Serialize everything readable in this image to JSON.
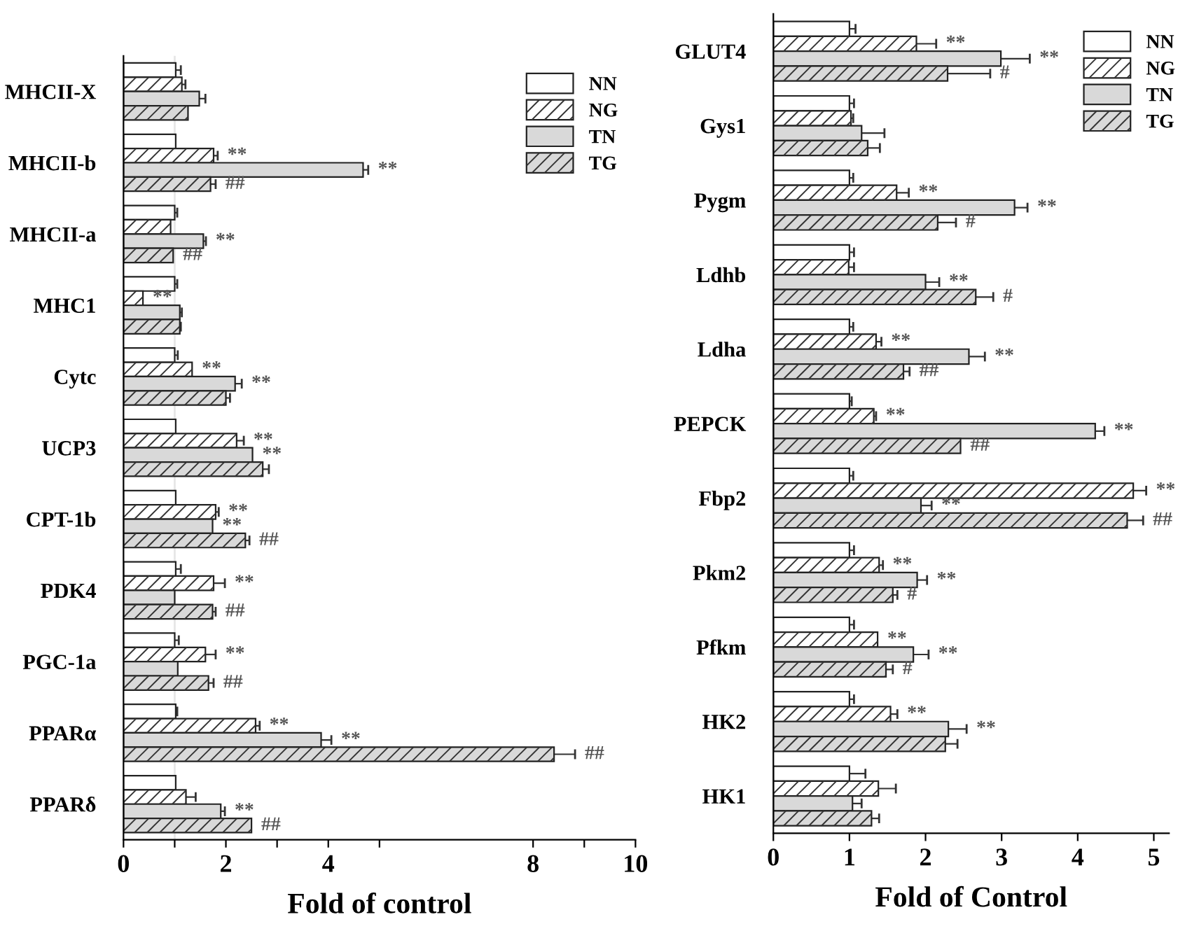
{
  "chart_data": [
    {
      "type": "bar",
      "orientation": "horizontal",
      "xlabel": "Fold of control",
      "legend": "top right",
      "categories": [
        "MHCII-X",
        "MHCII-b",
        "MHCII-a",
        "MHC1",
        "Cytc",
        "UCP3",
        "CPT-1b",
        "PDK4",
        "PGC-1a",
        "PPARα",
        "PPARδ"
      ],
      "xlim": [
        0,
        10
      ],
      "xticks": [
        0,
        {
          "value": 1,
          "label": null
        },
        2,
        {
          "value": 3,
          "label": null
        },
        4,
        {
          "value": 5,
          "label": null
        },
        8,
        {
          "value": 9,
          "label": null
        },
        10
      ],
      "ref_lines": [
        {
          "axis": "x",
          "value": 1,
          "label": null,
          "color": "#e6e6e6"
        }
      ],
      "series": [
        {
          "name": "NN",
          "color": "#ffffff",
          "values": [
            1.02,
            1.02,
            1.0,
            1.0,
            1.0,
            1.02,
            1.02,
            1.02,
            1.0,
            1.02,
            1.02
          ],
          "errors": [
            0.1,
            null,
            0.05,
            0.05,
            0.06,
            null,
            null,
            0.1,
            0.08,
            0.03,
            null
          ],
          "value_labels": [
            null,
            null,
            null,
            null,
            null,
            null,
            null,
            null,
            null,
            null,
            null
          ]
        },
        {
          "name": "NG",
          "color": "#ffffff",
          "values": [
            1.14,
            1.76,
            0.92,
            0.38,
            1.34,
            2.21,
            1.8,
            1.76,
            1.6,
            2.58,
            1.22
          ],
          "errors": [
            0.07,
            0.08,
            null,
            null,
            null,
            0.14,
            0.06,
            0.22,
            0.2,
            0.08,
            0.19
          ],
          "value_labels": [
            null,
            "**",
            null,
            "**",
            "**",
            "**",
            "**",
            "**",
            "**",
            "**",
            null
          ]
        },
        {
          "name": "TN",
          "color": "#d9d9d9",
          "values": [
            1.48,
            4.68,
            1.56,
            1.1,
            2.18,
            2.52,
            1.74,
            1.0,
            1.06,
            3.86,
            1.9
          ],
          "errors": [
            0.12,
            0.1,
            0.05,
            0.04,
            0.13,
            null,
            null,
            null,
            null,
            0.2,
            0.08
          ],
          "value_labels": [
            null,
            "**",
            "**",
            null,
            "**",
            "**",
            "**",
            null,
            null,
            "**",
            "**"
          ]
        },
        {
          "name": "TG",
          "color": "#d9d9d9",
          "values": [
            1.26,
            1.7,
            0.97,
            1.1,
            2.0,
            2.72,
            2.38,
            1.74,
            1.66,
            8.41,
            2.5
          ],
          "errors": [
            null,
            0.1,
            null,
            0.02,
            0.08,
            0.12,
            0.08,
            0.06,
            0.1,
            0.41,
            null
          ],
          "value_labels": [
            null,
            "##",
            "##",
            null,
            null,
            null,
            "##",
            "##",
            "##",
            "##",
            "##"
          ]
        }
      ]
    },
    {
      "type": "bar",
      "orientation": "horizontal",
      "xlabel": "Fold of Control",
      "legend": "top right",
      "categories": [
        "GLUT4",
        "Gys1",
        "Pygm",
        "Ldhb",
        "Ldha",
        "PEPCK",
        "Fbp2",
        "Pkm2",
        "Pfkm",
        "HK2",
        "HK1"
      ],
      "xlim": [
        0,
        5.2
      ],
      "xticks": [
        0,
        1,
        2,
        3,
        4,
        5
      ],
      "series": [
        {
          "name": "NN",
          "color": "#ffffff",
          "values": [
            1.0,
            1.0,
            1.0,
            1.0,
            1.0,
            1.0,
            1.0,
            1.0,
            1.0,
            1.0,
            1.0
          ],
          "errors": [
            0.08,
            0.06,
            0.05,
            0.06,
            0.05,
            0.03,
            0.05,
            0.06,
            0.06,
            0.06,
            0.21
          ],
          "value_labels": [
            null,
            null,
            null,
            null,
            null,
            null,
            null,
            null,
            null,
            null,
            null
          ]
        },
        {
          "name": "NG",
          "color": "#ffffff",
          "values": [
            1.88,
            1.02,
            1.62,
            0.99,
            1.35,
            1.32,
            4.73,
            1.39,
            1.37,
            1.54,
            1.38
          ],
          "errors": [
            0.26,
            0.03,
            0.16,
            0.07,
            0.07,
            0.03,
            0.17,
            0.05,
            null,
            0.09,
            0.23
          ],
          "value_labels": [
            "**",
            null,
            "**",
            null,
            "**",
            "**",
            "**",
            "**",
            "**",
            "**",
            null
          ]
        },
        {
          "name": "TN",
          "color": "#d9d9d9",
          "values": [
            2.99,
            1.16,
            3.17,
            2.0,
            2.57,
            4.23,
            1.94,
            1.89,
            1.84,
            2.3,
            1.04
          ],
          "errors": [
            0.38,
            0.3,
            0.17,
            0.18,
            0.21,
            0.12,
            0.14,
            0.13,
            0.2,
            0.24,
            0.12
          ],
          "value_labels": [
            "**",
            null,
            "**",
            "**",
            "**",
            "**",
            "**",
            "**",
            "**",
            "**",
            null
          ]
        },
        {
          "name": "TG",
          "color": "#d9d9d9",
          "values": [
            2.29,
            1.24,
            2.16,
            2.66,
            1.71,
            2.46,
            4.65,
            1.57,
            1.48,
            2.26,
            1.29
          ],
          "errors": [
            0.56,
            0.16,
            0.24,
            0.23,
            0.08,
            null,
            0.21,
            0.06,
            0.09,
            0.16,
            0.1
          ],
          "value_labels": [
            "#",
            null,
            "#",
            "#",
            "##",
            "##",
            "##",
            "#",
            "#",
            null,
            null
          ]
        }
      ]
    }
  ]
}
